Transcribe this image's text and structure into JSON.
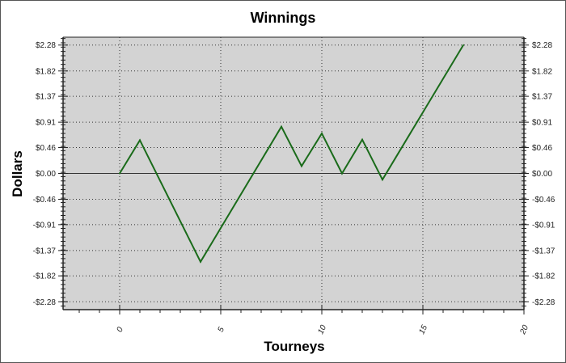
{
  "chart_data": {
    "type": "line",
    "title": "Winnings",
    "xlabel": "Tourneys",
    "ylabel": "Dollars",
    "xlim": [
      -2.8,
      20
    ],
    "ylim": [
      -2.42,
      2.42
    ],
    "x_ticks": [
      0,
      5,
      10,
      15,
      20
    ],
    "x_tick_labels": [
      "0",
      "5",
      "10",
      "15",
      "20"
    ],
    "y_ticks": [
      2.28,
      1.82,
      1.37,
      0.91,
      0.46,
      0,
      -0.46,
      -0.91,
      -1.37,
      -1.82,
      -2.28
    ],
    "y_tick_labels": [
      "$2.28",
      "$1.82",
      "$1.37",
      "$0.91",
      "$0.46",
      "$0.00",
      "-$0.46",
      "-$0.91",
      "-$1.37",
      "-$1.82",
      "-$2.28"
    ],
    "grid": true,
    "background": "#d3d3d3",
    "line_color": "#1a6b1a",
    "series": [
      {
        "x": [
          0,
          1,
          4,
          8,
          9,
          10,
          11,
          12,
          13,
          17
        ],
        "values": [
          0,
          0.59,
          -1.57,
          0.83,
          0.13,
          0.71,
          0,
          0.6,
          -0.11,
          2.28
        ]
      }
    ]
  }
}
